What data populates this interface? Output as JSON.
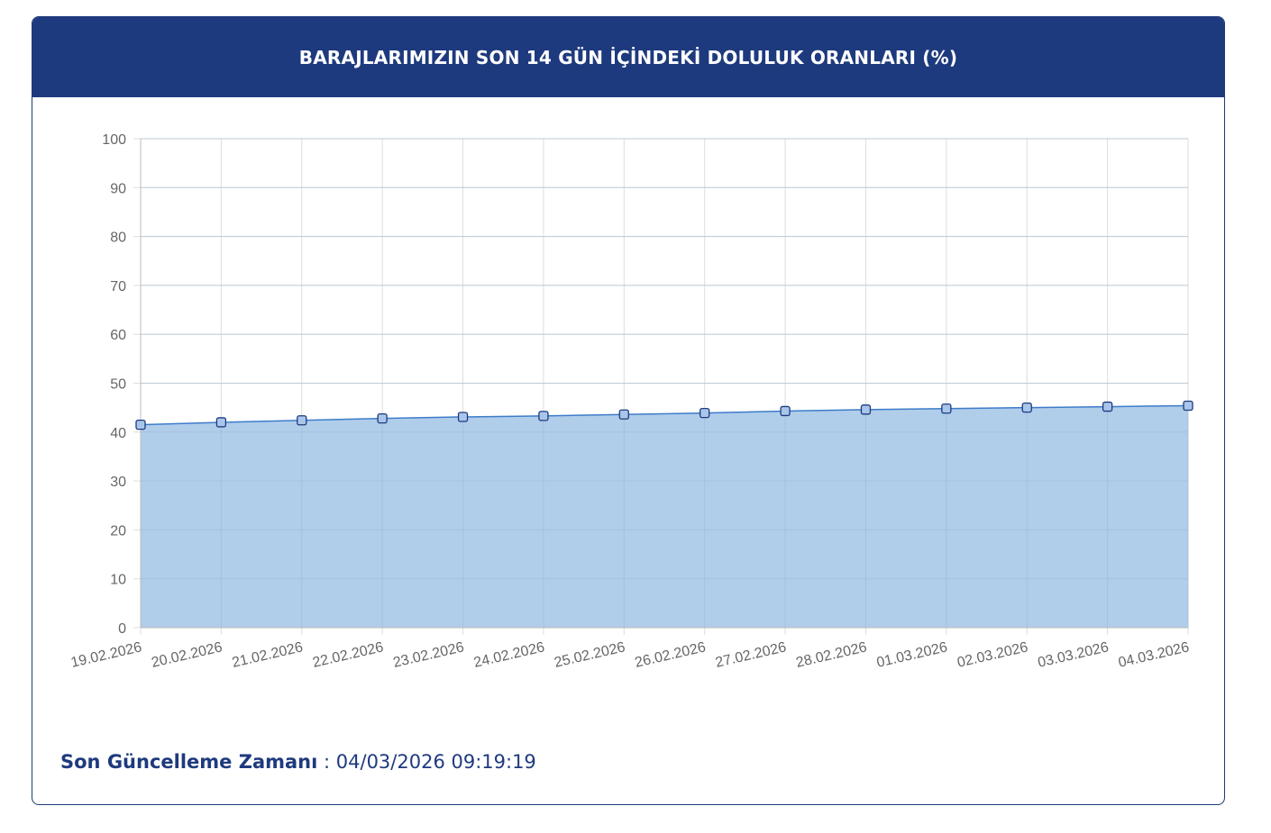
{
  "header": {
    "title": "BARAJLARIMIZIN SON 14 GÜN İÇİNDEKİ DOLULUK ORANLARI (%)"
  },
  "footer": {
    "label": "Son Güncelleme Zamanı",
    "separator": " : ",
    "value": "04/03/2026 09:19:19"
  },
  "colors": {
    "header_bg": "#1e3a7e",
    "area_fill": "#b0cdea",
    "line": "#3d7cc9",
    "marker_fill": "#a9c6ea",
    "marker_stroke": "#1e3a7e",
    "grid": "#dddddd"
  },
  "chart_data": {
    "type": "area",
    "title": "",
    "xlabel": "",
    "ylabel": "",
    "x": [
      "19.02.2026",
      "20.02.2026",
      "21.02.2026",
      "22.02.2026",
      "23.02.2026",
      "24.02.2026",
      "25.02.2026",
      "26.02.2026",
      "27.02.2026",
      "28.02.2026",
      "01.03.2026",
      "02.03.2026",
      "03.03.2026",
      "04.03.2026"
    ],
    "series": [
      {
        "values": [
          41.5,
          42.0,
          42.4,
          42.8,
          43.1,
          43.3,
          43.6,
          43.9,
          44.3,
          44.6,
          44.8,
          45.0,
          45.2,
          45.4
        ]
      }
    ],
    "ylim": [
      0,
      100
    ],
    "yticks": [
      "0",
      "10",
      "20",
      "30",
      "40",
      "50",
      "60",
      "70",
      "80",
      "90",
      "100"
    ],
    "grid": true,
    "legend": "none"
  }
}
